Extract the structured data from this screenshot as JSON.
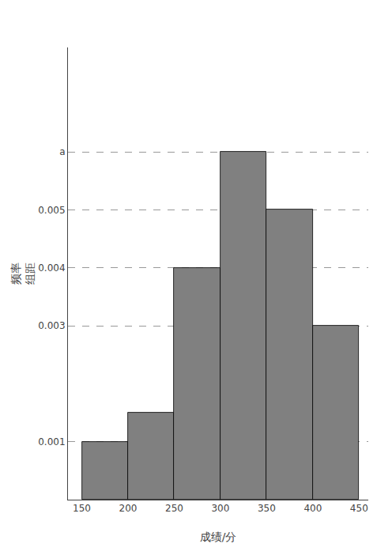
{
  "chart_data": {
    "type": "histogram",
    "bins": [
      150,
      200,
      250,
      300,
      350,
      400,
      450
    ],
    "values": [
      0.001,
      0.0015,
      0.004,
      0.006,
      0.005,
      0.003
    ],
    "color": "#808080",
    "xlabel": "成绩/分",
    "ylabel": [
      "频率",
      "组距"
    ],
    "xlim": [
      135,
      460
    ],
    "xticks": [
      150,
      200,
      250,
      300,
      350,
      400,
      450
    ],
    "ylim": [
      0,
      0.0078
    ],
    "yticks": [
      0.001,
      0.003,
      0.004,
      0.005,
      {
        "value": 0.006,
        "label": "a"
      }
    ],
    "grid": true
  }
}
